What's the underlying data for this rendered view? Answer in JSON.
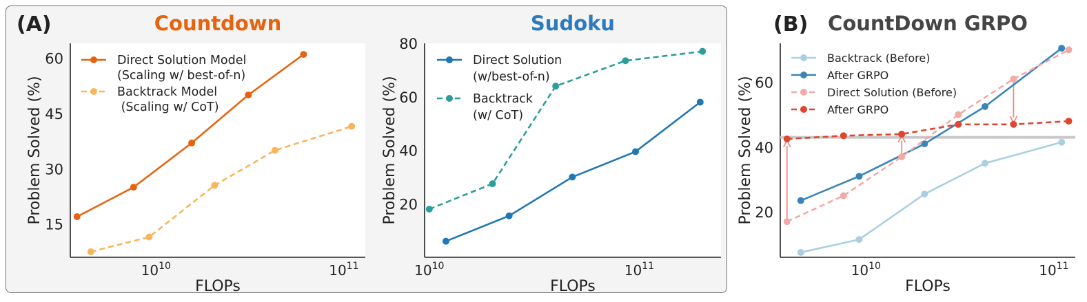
{
  "panels": [
    {
      "label": "(A)"
    },
    {
      "label": "(B)"
    }
  ],
  "chart_data": [
    {
      "type": "line",
      "title": "Countdown",
      "title_color": "#e6640f",
      "xlabel": "FLOPs",
      "ylabel": "Problem Solved (%)",
      "xscale": "log",
      "xlim": [
        3500000000.0,
        130000000000.0
      ],
      "ylim": [
        6,
        64
      ],
      "yticks": [
        15,
        30,
        45,
        60
      ],
      "xticks": [
        {
          "v": 10000000000.0,
          "base": "10",
          "exp": "10"
        },
        {
          "v": 100000000000.0,
          "base": "10",
          "exp": "11"
        }
      ],
      "legend_position": "top-left",
      "series": [
        {
          "name": "Direct Solution Model\n(Scaling w/ best-of-n)",
          "color": "#e6640f",
          "dash": false,
          "x": [
            3800000000.0,
            7600000000.0,
            15500000000.0,
            31000000000.0,
            61000000000.0
          ],
          "y": [
            17,
            25,
            37,
            50,
            61
          ]
        },
        {
          "name": "Backtrack Model\n (Scaling w/ CoT)",
          "color": "#f8b55b",
          "dash": true,
          "x": [
            4500000000.0,
            9200000000.0,
            20500000000.0,
            43000000000.0,
            110000000000.0
          ],
          "y": [
            7.5,
            11.5,
            25.5,
            35,
            41.5
          ]
        }
      ]
    },
    {
      "type": "line",
      "title": "Sudoku",
      "title_color": "#2d7bbd",
      "xlabel": "FLOPs",
      "ylabel": "Problem Solved (%)",
      "xscale": "log",
      "xlim": [
        9500000000.0,
        245000000000.0
      ],
      "ylim": [
        0,
        80
      ],
      "yticks": [
        20,
        40,
        60,
        80
      ],
      "xticks": [
        {
          "v": 10000000000.0,
          "base": "10",
          "exp": "10"
        },
        {
          "v": 100000000000.0,
          "base": "10",
          "exp": "11"
        }
      ],
      "legend_position": "top-left",
      "series": [
        {
          "name": "Direct Solution\n(w/best-of-n)",
          "color": "#1f77b4",
          "dash": false,
          "x": [
            12000000000.0,
            24000000000.0,
            48000000000.0,
            96000000000.0,
            195000000000.0
          ],
          "y": [
            6,
            15.5,
            30,
            39.5,
            58
          ]
        },
        {
          "name": "Backtrack\n(w/ CoT)",
          "color": "#2a9d9d",
          "dash": true,
          "x": [
            10000000000.0,
            20000000000.0,
            40000000000.0,
            86000000000.0,
            200000000000.0
          ],
          "y": [
            18,
            27.5,
            64,
            73.5,
            77
          ]
        }
      ]
    },
    {
      "type": "line",
      "title": "CountDown GRPO",
      "title_color": "#454545",
      "xlabel": "FLOPs",
      "ylabel": "Problem Solved (%)",
      "xscale": "log",
      "xlim": [
        3500000000.0,
        130000000000.0
      ],
      "ylim": [
        6,
        72
      ],
      "yticks": [
        20,
        40,
        60
      ],
      "xticks": [
        {
          "v": 10000000000.0,
          "base": "10",
          "exp": "10"
        },
        {
          "v": 100000000000.0,
          "base": "10",
          "exp": "11"
        }
      ],
      "legend_position": "top-left",
      "hline": {
        "y": 43,
        "color": "#c8c8c8"
      },
      "arrows": [
        {
          "x": 3800000000.0,
          "from": 17,
          "to": 42.5,
          "color": "#ee8a84"
        },
        {
          "x": 15500000000.0,
          "from": 37,
          "to": 44,
          "color": "#ee8a84"
        },
        {
          "x": 61000000000.0,
          "from": 61,
          "to": 47,
          "color": "#ee8a84"
        }
      ],
      "series": [
        {
          "name": "Backtrack (Before)",
          "color": "#a9cfe2",
          "dash": false,
          "x": [
            4500000000.0,
            9200000000.0,
            20500000000.0,
            43000000000.0,
            110000000000.0
          ],
          "y": [
            7.5,
            11.5,
            25.5,
            35,
            41.5
          ]
        },
        {
          "name": "After GRPO",
          "color": "#3a85b8",
          "dash": false,
          "x": [
            4500000000.0,
            9200000000.0,
            20500000000.0,
            43000000000.0,
            110000000000.0
          ],
          "y": [
            23.5,
            31,
            41,
            52.5,
            70.5
          ]
        },
        {
          "name": "Direct Solution (Before)",
          "color": "#f1aaa5",
          "dash": true,
          "x": [
            3800000000.0,
            7600000000.0,
            15500000000.0,
            31000000000.0,
            61000000000.0,
            120000000000.0
          ],
          "y": [
            17,
            25,
            37,
            50,
            61,
            70
          ]
        },
        {
          "name": "After GRPO",
          "color": "#e0452f",
          "dash": true,
          "x": [
            3800000000.0,
            7600000000.0,
            15500000000.0,
            31000000000.0,
            61000000000.0,
            120000000000.0
          ],
          "y": [
            42.5,
            43.5,
            44,
            47,
            47,
            48
          ]
        }
      ]
    }
  ]
}
